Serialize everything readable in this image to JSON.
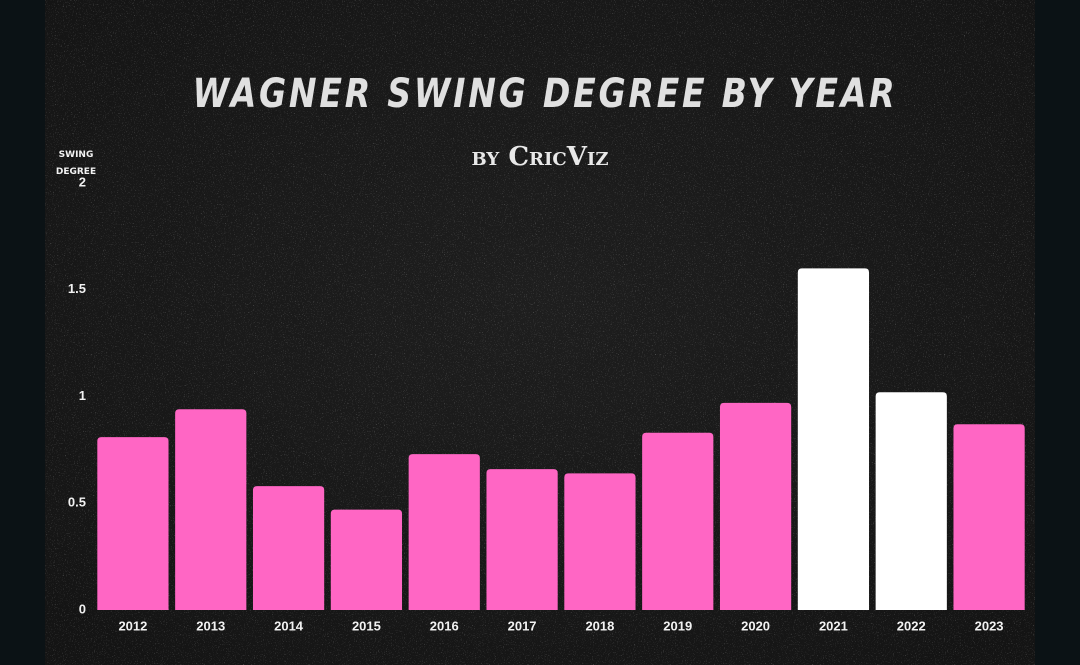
{
  "chart_data": {
    "type": "bar",
    "title": "WAGNER SWING DEGREE BY YEAR",
    "subtitle": "by CricViz",
    "y_label": "SWING DEGREE",
    "categories": [
      "2012",
      "2013",
      "2014",
      "2015",
      "2016",
      "2017",
      "2018",
      "2019",
      "2020",
      "2021",
      "2022",
      "2023"
    ],
    "values": [
      0.81,
      0.94,
      0.58,
      0.47,
      0.73,
      0.66,
      0.64,
      0.83,
      0.97,
      1.6,
      1.02,
      0.87
    ],
    "colors": [
      "#ff66c4",
      "#ff66c4",
      "#ff66c4",
      "#ff66c4",
      "#ff66c4",
      "#ff66c4",
      "#ff66c4",
      "#ff66c4",
      "#ff66c4",
      "#ffffff",
      "#ffffff",
      "#ff66c4"
    ],
    "ylim": [
      0,
      2
    ],
    "yticks": [
      0,
      0.5,
      1,
      1.5,
      2
    ],
    "grid": false
  }
}
